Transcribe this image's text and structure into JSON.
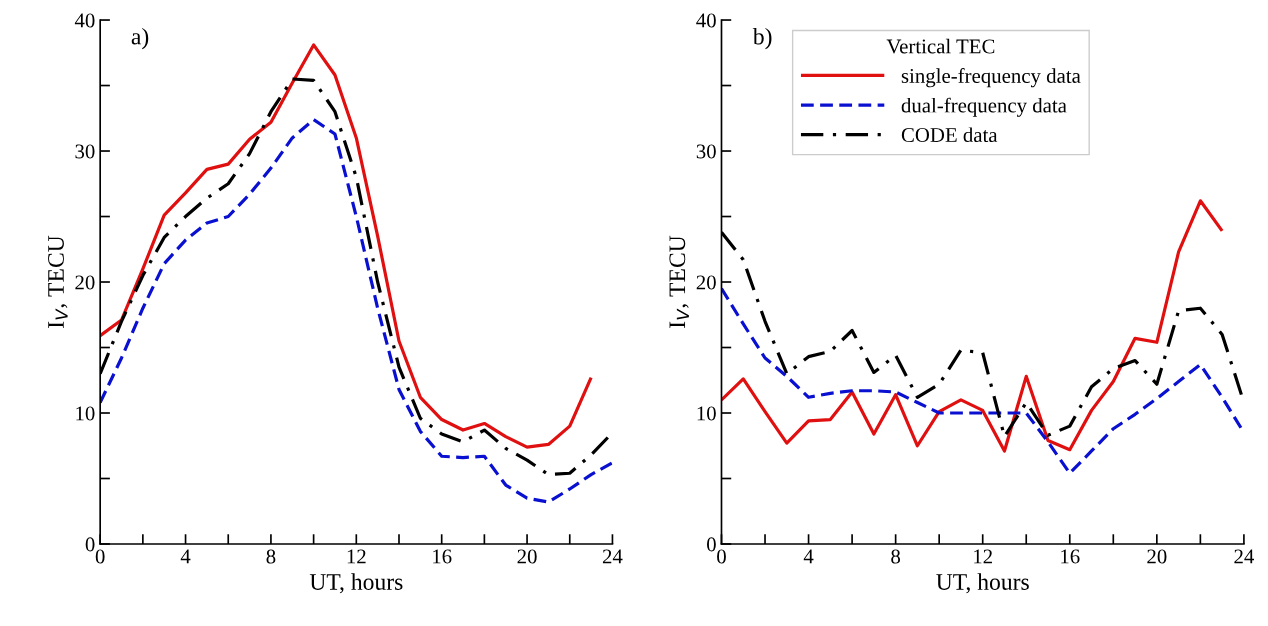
{
  "chart_data": [
    {
      "type": "line",
      "annotations": [
        "a)"
      ],
      "xlabel": "UT, hours",
      "ylabel": "I$_{V}$, TECU",
      "xlim": [
        0,
        24
      ],
      "xticks": [
        0,
        {
          "value": 2,
          "label": null
        },
        4,
        {
          "value": 6,
          "label": null
        },
        8,
        {
          "value": 10,
          "label": null
        },
        12,
        {
          "value": 14,
          "label": null
        },
        16,
        {
          "value": 18,
          "label": null
        },
        20,
        {
          "value": 22,
          "label": null
        },
        24
      ],
      "ylim": [
        0,
        40
      ],
      "yticks": [
        0,
        {
          "value": 5,
          "label": null
        },
        10,
        {
          "value": 15,
          "label": null
        },
        20,
        {
          "value": 25,
          "label": null
        },
        30,
        {
          "value": 35,
          "label": null
        },
        40
      ],
      "legend": false,
      "grid": false,
      "series": [
        {
          "color": "#e01010",
          "line_style": "solid",
          "x": [
            0,
            1,
            2,
            3,
            4,
            5,
            6,
            7,
            8,
            9,
            10,
            11,
            12,
            13,
            14,
            15,
            16,
            17,
            18,
            19,
            20,
            21,
            22,
            23
          ],
          "values": [
            15.9,
            17.1,
            21,
            25.1,
            26.8,
            28.6,
            29,
            30.9,
            32.2,
            35.2,
            38.1,
            35.8,
            31,
            23.5,
            15.5,
            11.2,
            9.5,
            8.7,
            9.2,
            8.2,
            7.4,
            7.6,
            9,
            12.7
          ]
        },
        {
          "color": "#0a10d0",
          "line_style": "dashed",
          "x": [
            0,
            1,
            2,
            3,
            4,
            5,
            6,
            7,
            8,
            9,
            10,
            11,
            12,
            13,
            14,
            15,
            16,
            17,
            18,
            19,
            20,
            21,
            22,
            23,
            24
          ],
          "values": [
            10.8,
            14.2,
            18,
            21.4,
            23.2,
            24.5,
            25,
            26.7,
            28.7,
            31,
            32.4,
            31.3,
            25,
            18,
            11.8,
            8.6,
            6.7,
            6.6,
            6.7,
            4.5,
            3.5,
            3.2,
            4.2,
            5.3,
            6.2
          ]
        },
        {
          "color": "#000000",
          "line_style": "dashdot",
          "x": [
            0,
            1,
            2,
            3,
            4,
            5,
            6,
            7,
            8,
            9,
            10,
            11,
            12,
            13,
            14,
            15,
            16,
            17,
            18,
            19,
            20,
            21,
            22,
            23,
            24
          ],
          "values": [
            13,
            17,
            20.5,
            23.4,
            25,
            26.4,
            27.5,
            29.8,
            33,
            35.5,
            35.4,
            33,
            28,
            20,
            13.5,
            9.6,
            8.4,
            7.8,
            8.7,
            7.3,
            6.4,
            5.3,
            5.4,
            6.8,
            8.5
          ]
        }
      ]
    },
    {
      "type": "line",
      "annotations": [
        "b)"
      ],
      "xlabel": "UT, hours",
      "ylabel": "I$_{V}$, TECU",
      "legend_title": "Vertical TEC",
      "xlim": [
        0,
        24
      ],
      "xticks": [
        0,
        {
          "value": 2,
          "label": null
        },
        4,
        {
          "value": 6,
          "label": null
        },
        8,
        {
          "value": 10,
          "label": null
        },
        12,
        {
          "value": 14,
          "label": null
        },
        16,
        {
          "value": 18,
          "label": null
        },
        20,
        {
          "value": 22,
          "label": null
        },
        24
      ],
      "ylim": [
        0,
        40
      ],
      "yticks": [
        0,
        {
          "value": 5,
          "label": null
        },
        10,
        {
          "value": 15,
          "label": null
        },
        20,
        {
          "value": 25,
          "label": null
        },
        30,
        {
          "value": 35,
          "label": null
        },
        40
      ],
      "legend": "top",
      "grid": false,
      "series": [
        {
          "name": "single-frequency data",
          "color": "#e01010",
          "line_style": "solid",
          "x": [
            0,
            1,
            2,
            3,
            4,
            5,
            6,
            7,
            8,
            9,
            10,
            11,
            12,
            13,
            14,
            15,
            16,
            17,
            18,
            19,
            20,
            21,
            22,
            23
          ],
          "values": [
            11,
            12.6,
            10.1,
            7.7,
            9.4,
            9.5,
            11.6,
            8.4,
            11.4,
            7.5,
            10.1,
            11,
            10.2,
            7.1,
            12.8,
            7.9,
            7.2,
            10.2,
            12.4,
            15.7,
            15.4,
            22.3,
            26.2,
            23.9
          ]
        },
        {
          "name": "dual-frequency data",
          "color": "#0a10d0",
          "line_style": "dashed",
          "x": [
            0,
            1,
            2,
            3,
            4,
            5,
            6,
            7,
            8,
            9,
            10,
            11,
            12,
            13,
            14,
            15,
            16,
            17,
            18,
            19,
            20,
            21,
            22,
            23,
            24
          ],
          "values": [
            19.5,
            16.8,
            14.2,
            12.8,
            11.2,
            11.5,
            11.7,
            11.7,
            11.6,
            10.8,
            10,
            10,
            10,
            10,
            10,
            7.8,
            5.4,
            7.1,
            8.8,
            9.9,
            11.1,
            12.4,
            13.7,
            11.2,
            8.5
          ]
        },
        {
          "name": "CODE data",
          "color": "#000000",
          "line_style": "dashdot",
          "x": [
            0,
            1,
            2,
            3,
            4,
            5,
            6,
            7,
            8,
            9,
            10,
            11,
            12,
            13,
            14,
            15,
            16,
            17,
            18,
            19,
            20,
            21,
            22,
            23,
            24
          ],
          "values": [
            23.8,
            21.7,
            17,
            13,
            14.3,
            14.7,
            16.3,
            13.1,
            14.4,
            11.2,
            12.2,
            14.8,
            14.6,
            8.2,
            10.8,
            8.3,
            9,
            12,
            13.4,
            14,
            12.2,
            17.8,
            18,
            16,
            10.8
          ]
        }
      ]
    }
  ]
}
